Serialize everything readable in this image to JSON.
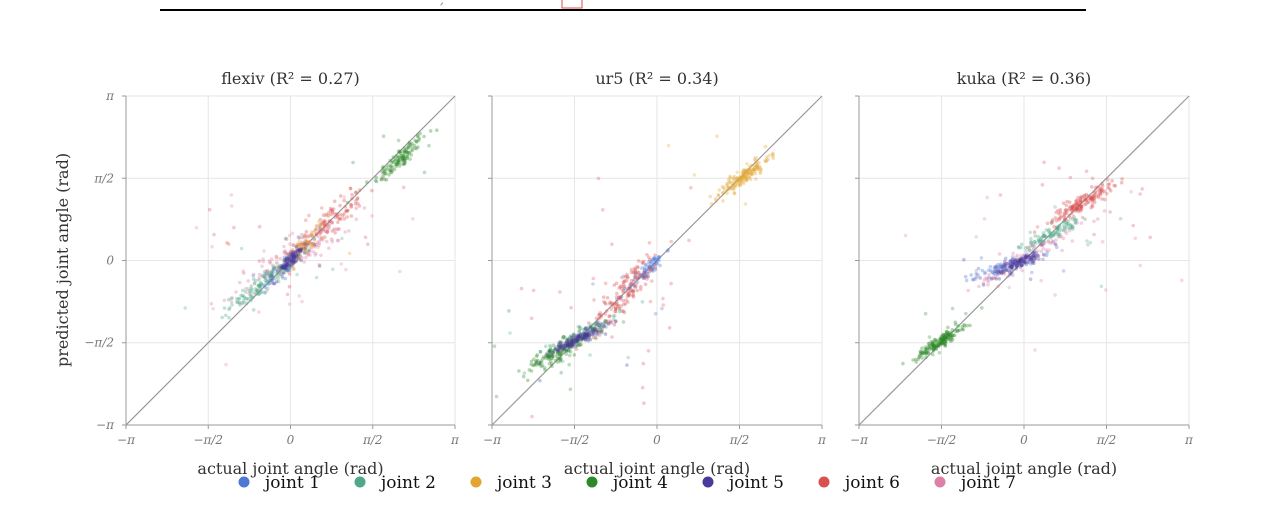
{
  "header": {
    "fragment": ","
  },
  "colors": {
    "joint 1": "#4c78d6",
    "joint 2": "#4fa889",
    "joint 3": "#e3a531",
    "joint 4": "#2e8a28",
    "joint 5": "#4b3a9a",
    "joint 6": "#d9504f",
    "joint 7": "#dd80a8"
  },
  "axes": {
    "ylabel": "predicted joint angle (rad)",
    "xlabel": "actual joint angle (rad)",
    "tick_labels": [
      "−π",
      "−π/2",
      "0",
      "π/2",
      "π"
    ]
  },
  "legend": [
    "joint 1",
    "joint 2",
    "joint 3",
    "joint 4",
    "joint 5",
    "joint 6",
    "joint 7"
  ],
  "chart_data": [
    {
      "type": "scatter",
      "title": "flexiv (R² = 0.27)",
      "xlabel": "actual joint angle (rad)",
      "ylabel": "predicted joint angle (rad)",
      "xlim": [
        -3.1416,
        3.1416
      ],
      "ylim": [
        -3.1416,
        3.1416
      ],
      "grid": true,
      "reference_line": "y = x",
      "series": [
        {
          "name": "joint 4",
          "clusters": [
            {
              "cx": 2.1,
              "cy": 1.95,
              "sx": 0.25,
              "sy": 0.22,
              "n": 120,
              "outliers": 6
            }
          ]
        },
        {
          "name": "joint 6",
          "clusters": [
            {
              "cx": 0.6,
              "cy": 0.6,
              "sx": 0.4,
              "sy": 0.32,
              "n": 140,
              "outliers": 20
            }
          ]
        },
        {
          "name": "joint 7",
          "clusters": [
            {
              "cx": 0.0,
              "cy": 0.05,
              "sx": 0.6,
              "sy": 0.35,
              "n": 110,
              "outliers": 25
            }
          ]
        },
        {
          "name": "joint 3",
          "clusters": [
            {
              "cx": 0.25,
              "cy": 0.25,
              "sx": 0.2,
              "sy": 0.2,
              "n": 60,
              "outliers": 4
            }
          ]
        },
        {
          "name": "joint 1",
          "clusters": [
            {
              "cx": -0.1,
              "cy": -0.1,
              "sx": 0.22,
              "sy": 0.2,
              "n": 60,
              "outliers": 4
            }
          ]
        },
        {
          "name": "joint 2",
          "clusters": [
            {
              "cx": -0.55,
              "cy": -0.45,
              "sx": 0.3,
              "sy": 0.22,
              "n": 120,
              "outliers": 8
            }
          ]
        },
        {
          "name": "joint 5",
          "clusters": [
            {
              "cx": 0.0,
              "cy": 0.0,
              "sx": 0.15,
              "sy": 0.15,
              "n": 90,
              "outliers": 3
            }
          ]
        }
      ]
    },
    {
      "type": "scatter",
      "title": "ur5 (R² = 0.34)",
      "xlabel": "actual joint angle (rad)",
      "ylabel": "",
      "xlim": [
        -3.1416,
        3.1416
      ],
      "ylim": [
        -3.1416,
        3.1416
      ],
      "grid": true,
      "reference_line": "y = x",
      "series": [
        {
          "name": "joint 3",
          "clusters": [
            {
              "cx": 1.65,
              "cy": 1.6,
              "sx": 0.25,
              "sy": 0.18,
              "n": 150,
              "outliers": 6
            }
          ]
        },
        {
          "name": "joint 1",
          "clusters": [
            {
              "cx": -0.2,
              "cy": -0.2,
              "sx": 0.18,
              "sy": 0.18,
              "n": 80,
              "outliers": 5
            }
          ]
        },
        {
          "name": "joint 6",
          "clusters": [
            {
              "cx": -0.6,
              "cy": -0.6,
              "sx": 0.35,
              "sy": 0.4,
              "n": 150,
              "outliers": 30
            }
          ]
        },
        {
          "name": "joint 2",
          "clusters": [
            {
              "cx": -1.4,
              "cy": -1.4,
              "sx": 0.35,
              "sy": 0.18,
              "n": 90,
              "outliers": 6
            }
          ]
        },
        {
          "name": "joint 4",
          "clusters": [
            {
              "cx": -1.85,
              "cy": -1.72,
              "sx": 0.35,
              "sy": 0.2,
              "n": 150,
              "outliers": 10
            }
          ]
        },
        {
          "name": "joint 5",
          "clusters": [
            {
              "cx": -1.5,
              "cy": -1.5,
              "sx": 0.25,
              "sy": 0.12,
              "n": 140,
              "outliers": 5
            }
          ]
        }
      ]
    },
    {
      "type": "scatter",
      "title": "kuka (R² = 0.36)",
      "xlabel": "actual joint angle (rad)",
      "ylabel": "",
      "xlim": [
        -3.1416,
        3.1416
      ],
      "ylim": [
        -3.1416,
        3.1416
      ],
      "grid": true,
      "reference_line": "y = x",
      "series": [
        {
          "name": "joint 6",
          "clusters": [
            {
              "cx": 1.1,
              "cy": 1.1,
              "sx": 0.3,
              "sy": 0.18,
              "n": 160,
              "outliers": 15
            }
          ]
        },
        {
          "name": "joint 2",
          "clusters": [
            {
              "cx": 0.5,
              "cy": 0.5,
              "sx": 0.3,
              "sy": 0.15,
              "n": 100,
              "outliers": 8
            }
          ]
        },
        {
          "name": "joint 7",
          "clusters": [
            {
              "cx": 0.1,
              "cy": 0.1,
              "sx": 0.5,
              "sy": 0.25,
              "n": 100,
              "outliers": 15
            }
          ]
        },
        {
          "name": "joint 1",
          "clusters": [
            {
              "cx": -0.35,
              "cy": -0.1,
              "sx": 0.4,
              "sy": 0.12,
              "n": 70,
              "outliers": 6
            }
          ]
        },
        {
          "name": "joint 5",
          "clusters": [
            {
              "cx": -0.1,
              "cy": -0.05,
              "sx": 0.25,
              "sy": 0.12,
              "n": 110,
              "outliers": 4
            }
          ]
        },
        {
          "name": "joint 4",
          "clusters": [
            {
              "cx": -1.6,
              "cy": -1.55,
              "sx": 0.22,
              "sy": 0.14,
              "n": 170,
              "outliers": 6
            }
          ]
        }
      ]
    }
  ]
}
